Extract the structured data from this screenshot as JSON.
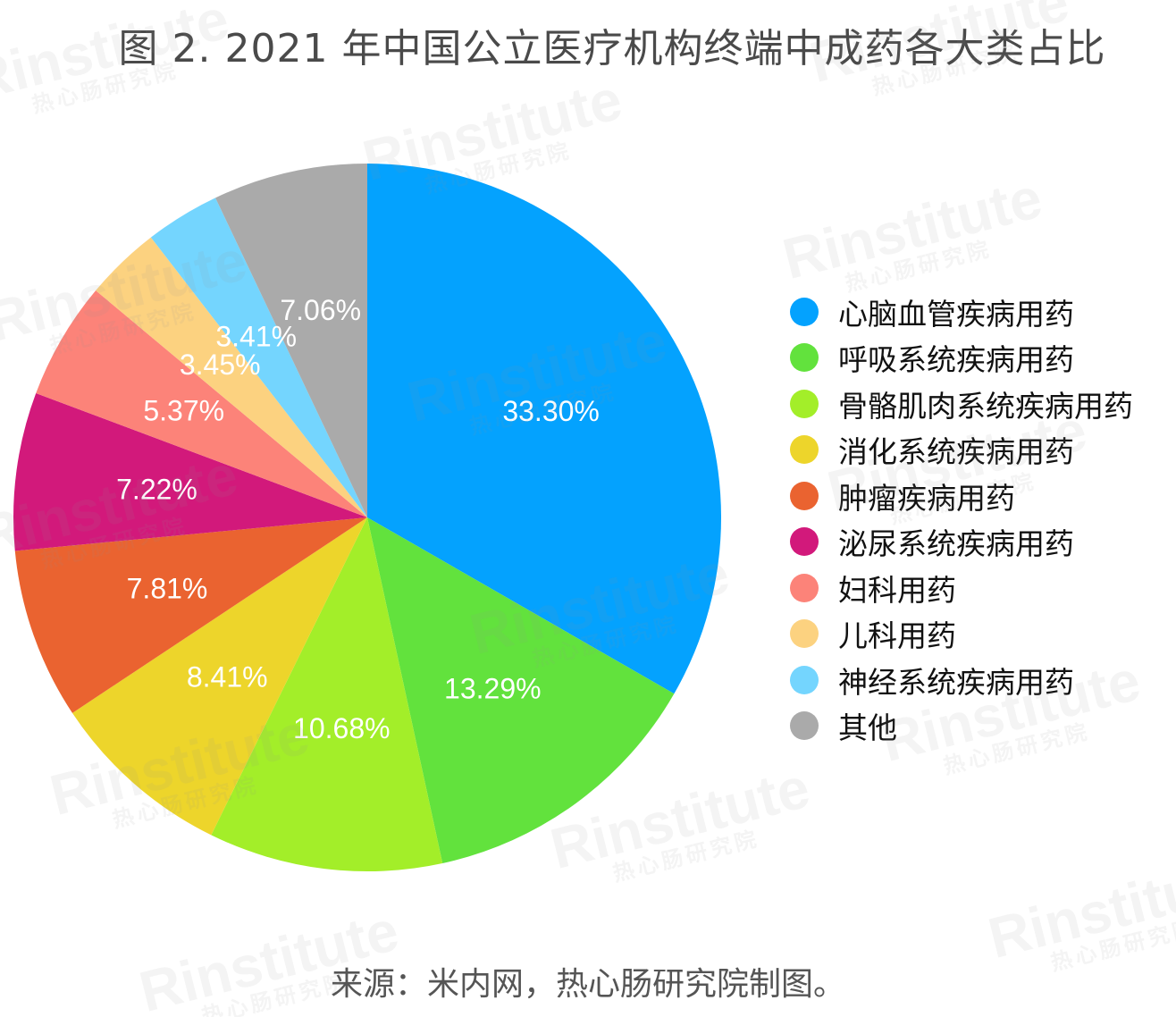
{
  "chart_data": {
    "type": "pie",
    "title": "图 2. 2021 年中国公立医疗机构终端中成药各大类占比",
    "unit": "%",
    "slices": [
      {
        "label": "心脑血管疾病用药",
        "value": 33.3,
        "display": "33.30%",
        "color": "#04A2FE"
      },
      {
        "label": "呼吸系统疾病用药",
        "value": 13.29,
        "display": "13.29%",
        "color": "#62E23D"
      },
      {
        "label": "骨骼肌肉系统疾病用药",
        "value": 10.68,
        "display": "10.68%",
        "color": "#A3EE29"
      },
      {
        "label": "消化系统疾病用药",
        "value": 8.41,
        "display": "8.41%",
        "color": "#EDD52B"
      },
      {
        "label": "肿瘤疾病用药",
        "value": 7.81,
        "display": "7.81%",
        "color": "#EA6330"
      },
      {
        "label": "泌尿系统疾病用药",
        "value": 7.22,
        "display": "7.22%",
        "color": "#D2197B"
      },
      {
        "label": "妇科用药",
        "value": 5.37,
        "display": "5.37%",
        "color": "#FC8379"
      },
      {
        "label": "儿科用药",
        "value": 3.45,
        "display": "3.45%",
        "color": "#FCD280"
      },
      {
        "label": "神经系统疾病用药",
        "value": 3.41,
        "display": "3.41%",
        "color": "#74D5FE"
      },
      {
        "label": "其他",
        "value": 7.06,
        "display": "7.06%",
        "color": "#AAAAAA"
      }
    ],
    "legend_position": "right"
  },
  "source": "来源：米内网，热心肠研究院制图。",
  "watermark": {
    "brand": "Rinstitute",
    "sub": "热心肠研究院"
  }
}
